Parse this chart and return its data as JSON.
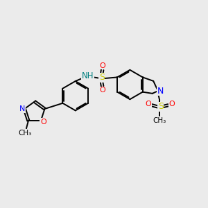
{
  "background_color": "#ebebeb",
  "bond_color": "#000000",
  "atom_colors": {
    "N": "#0000ff",
    "NH": "#008080",
    "O": "#ff0000",
    "S": "#cccc00",
    "C": "#000000"
  },
  "figsize": [
    3.0,
    3.0
  ],
  "dpi": 100
}
